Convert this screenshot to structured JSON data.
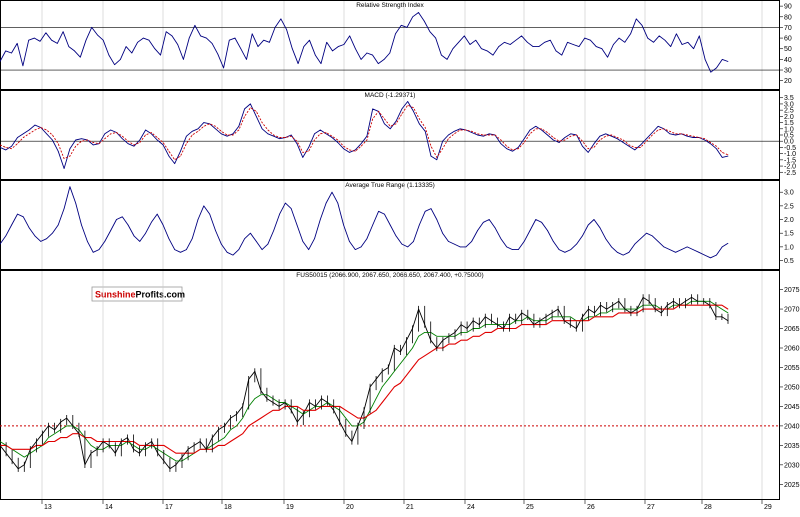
{
  "logo": {
    "part1": "Sunshine",
    "part2": "Profits.com"
  },
  "colors": {
    "price": "#000000",
    "ma_fast": "#008000",
    "ma_slow": "#e00000",
    "indicator": "#000080",
    "signal": "#cc0000",
    "reference": "#cc0000",
    "grid": "#c8c8c8"
  },
  "chart_data": [
    {
      "type": "line",
      "title": "Relative Strength Index",
      "ylim": [
        15,
        92
      ],
      "yticks": [
        "90",
        "80",
        "70",
        "60",
        "50",
        "40",
        "30",
        "20"
      ],
      "ytick_values": [
        90,
        80,
        70,
        60,
        50,
        40,
        30,
        20
      ],
      "hlines": [
        70,
        30
      ],
      "series": [
        {
          "values": [
            38,
            48,
            46,
            55,
            34,
            58,
            60,
            57,
            65,
            58,
            55,
            66,
            52,
            48,
            42,
            58,
            70,
            63,
            58,
            44,
            35,
            40,
            52,
            46,
            56,
            60,
            58,
            50,
            44,
            66,
            62,
            54,
            40,
            60,
            72,
            62,
            60,
            55,
            45,
            32,
            58,
            60,
            50,
            40,
            64,
            52,
            58,
            56,
            70,
            78,
            68,
            50,
            36,
            52,
            58,
            44,
            36,
            56,
            48,
            52,
            54,
            62,
            50,
            40,
            46,
            44,
            36,
            40,
            46,
            64,
            72,
            70,
            80,
            84,
            76,
            66,
            60,
            44,
            40,
            50,
            56,
            62,
            54,
            58,
            50,
            48,
            44,
            52,
            56,
            54,
            58,
            62,
            56,
            52,
            52,
            56,
            58,
            48,
            44,
            56,
            54,
            52,
            60,
            58,
            52,
            50,
            42,
            54,
            60,
            56,
            64,
            78,
            72,
            60,
            56,
            62,
            58,
            52,
            64,
            54,
            56,
            50,
            62,
            40,
            28,
            32,
            40,
            38
          ]
        }
      ]
    },
    {
      "type": "line",
      "title": "MACD (-1.29371)",
      "ylim": [
        -2.8,
        3.8
      ],
      "yticks": [
        "3.5",
        "3.0",
        "2.5",
        "2.0",
        "1.5",
        "1.0",
        "0.5",
        "0.0",
        "-0.5",
        "-1.0",
        "-1.5",
        "-2.0",
        "-2.5"
      ],
      "ytick_values": [
        3.5,
        3.0,
        2.5,
        2.0,
        1.5,
        1.0,
        0.5,
        0.0,
        -0.5,
        -1.0,
        -1.5,
        -2.0,
        -2.5
      ],
      "hlines": [
        0
      ],
      "series": [
        {
          "values": [
            -0.5,
            -0.7,
            -0.4,
            0.3,
            0.6,
            0.9,
            1.3,
            1.1,
            0.6,
            0.1,
            -0.8,
            -2.2,
            -0.6,
            0.1,
            0.2,
            0.1,
            -0.3,
            -0.2,
            0.6,
            0.9,
            0.7,
            0.2,
            -0.2,
            -0.4,
            0.1,
            0.9,
            0.6,
            0.1,
            -0.3,
            -1.2,
            -1.8,
            -0.8,
            0.4,
            0.8,
            1.0,
            1.5,
            1.4,
            1.0,
            0.6,
            0.4,
            0.6,
            1.2,
            2.6,
            3.0,
            2.0,
            1.0,
            0.6,
            0.4,
            0.2,
            0.3,
            0.5,
            -0.2,
            -1.3,
            -0.5,
            0.6,
            0.9,
            0.6,
            0.3,
            -0.1,
            -0.6,
            -0.9,
            -0.7,
            -0.2,
            0.4,
            2.6,
            2.4,
            1.4,
            1.0,
            1.6,
            2.6,
            3.2,
            2.4,
            1.4,
            0.8,
            -1.2,
            -1.5,
            0.0,
            0.5,
            0.8,
            1.0,
            0.9,
            0.7,
            0.5,
            0.4,
            0.6,
            0.5,
            -0.2,
            -0.6,
            -0.8,
            -0.5,
            0.2,
            0.9,
            1.2,
            0.9,
            0.5,
            0.1,
            -0.1,
            0.3,
            0.6,
            0.5,
            -0.4,
            -0.9,
            -0.2,
            0.4,
            0.6,
            0.4,
            0.2,
            -0.1,
            -0.4,
            -0.7,
            -0.3,
            0.2,
            0.7,
            1.2,
            1.0,
            0.6,
            0.5,
            0.6,
            0.4,
            0.3,
            0.3,
            0.1,
            -0.2,
            -0.6,
            -1.3,
            -1.2
          ]
        },
        {
          "values": [
            -0.3,
            -0.5,
            -0.6,
            -0.2,
            0.3,
            0.6,
            0.9,
            1.1,
            0.9,
            0.5,
            -0.2,
            -1.4,
            -1.2,
            -0.4,
            0.0,
            0.1,
            -0.1,
            -0.2,
            0.2,
            0.6,
            0.7,
            0.4,
            0.0,
            -0.3,
            -0.1,
            0.5,
            0.7,
            0.3,
            -0.1,
            -0.8,
            -1.5,
            -1.2,
            -0.2,
            0.5,
            0.8,
            1.2,
            1.4,
            1.2,
            0.8,
            0.5,
            0.5,
            0.9,
            2.0,
            2.7,
            2.4,
            1.5,
            0.9,
            0.5,
            0.3,
            0.3,
            0.4,
            0.0,
            -0.9,
            -0.8,
            0.1,
            0.6,
            0.7,
            0.4,
            0.1,
            -0.4,
            -0.7,
            -0.8,
            -0.4,
            0.1,
            1.8,
            2.4,
            1.8,
            1.2,
            1.4,
            2.2,
            2.9,
            2.7,
            1.8,
            1.1,
            -0.4,
            -1.3,
            -0.6,
            0.2,
            0.6,
            0.9,
            0.9,
            0.8,
            0.6,
            0.5,
            0.5,
            0.5,
            0.1,
            -0.4,
            -0.7,
            -0.6,
            -0.1,
            0.6,
            1.0,
            1.0,
            0.7,
            0.3,
            0.0,
            0.1,
            0.4,
            0.5,
            0.0,
            -0.6,
            -0.5,
            0.1,
            0.4,
            0.5,
            0.3,
            0.1,
            -0.3,
            -0.5,
            -0.5,
            0.0,
            0.5,
            0.9,
            1.0,
            0.8,
            0.6,
            0.6,
            0.5,
            0.4,
            0.3,
            0.2,
            -0.1,
            -0.4,
            -0.9,
            -1.1
          ]
        }
      ]
    },
    {
      "type": "line",
      "title": "Average True Range (1.13335)",
      "ylim": [
        0.3,
        3.3
      ],
      "yticks": [
        "3.0",
        "2.5",
        "2.0",
        "1.5",
        "1.0",
        "0.5"
      ],
      "ytick_values": [
        3.0,
        2.5,
        2.0,
        1.5,
        1.0,
        0.5
      ],
      "series": [
        {
          "values": [
            1.1,
            1.4,
            1.8,
            2.2,
            2.1,
            1.7,
            1.4,
            1.2,
            1.3,
            1.5,
            1.8,
            2.4,
            3.2,
            2.6,
            1.8,
            1.2,
            0.8,
            0.9,
            1.2,
            1.6,
            2.0,
            2.1,
            1.8,
            1.4,
            1.2,
            1.5,
            1.9,
            2.2,
            1.8,
            1.3,
            0.9,
            0.8,
            0.9,
            1.3,
            2.0,
            2.5,
            2.2,
            1.6,
            1.1,
            0.8,
            0.7,
            0.9,
            1.3,
            1.5,
            1.2,
            0.9,
            1.1,
            1.6,
            2.2,
            2.6,
            2.4,
            1.8,
            1.2,
            0.9,
            1.3,
            2.0,
            2.6,
            3.0,
            2.6,
            1.8,
            1.2,
            0.9,
            1.0,
            1.3,
            1.8,
            2.3,
            2.2,
            1.8,
            1.4,
            1.1,
            1.0,
            1.2,
            1.8,
            2.3,
            2.4,
            2.0,
            1.5,
            1.2,
            1.1,
            1.0,
            1.0,
            1.2,
            1.6,
            1.9,
            2.0,
            1.7,
            1.3,
            1.0,
            0.9,
            0.9,
            1.2,
            1.6,
            2.0,
            1.9,
            1.6,
            1.2,
            0.9,
            0.8,
            0.9,
            1.1,
            1.4,
            1.8,
            2.0,
            1.7,
            1.3,
            1.0,
            0.8,
            0.7,
            0.8,
            1.1,
            1.3,
            1.5,
            1.4,
            1.2,
            1.0,
            0.9,
            0.8,
            0.9,
            1.0,
            0.9,
            0.8,
            0.7,
            0.6,
            0.7,
            1.0,
            1.13
          ]
        }
      ]
    },
    {
      "type": "line",
      "title": "FUS50015 (2066.900, 2067.650, 2066.650, 2067.400, +0.75000)",
      "ylim": [
        2022,
        2079
      ],
      "yticks": [
        "2075",
        "2070",
        "2065",
        "2060",
        "2055",
        "2050",
        "2045",
        "2040",
        "2035",
        "2030",
        "2025"
      ],
      "ytick_values": [
        2075,
        2070,
        2065,
        2060,
        2055,
        2050,
        2045,
        2040,
        2035,
        2030,
        2025
      ],
      "x_tick_labels": [
        "13",
        "14",
        "17",
        "18",
        "19",
        "20",
        "21",
        "24",
        "25",
        "26",
        "27",
        "28",
        "29"
      ],
      "reference_line": 2040,
      "series": [
        {
          "values": [
            2035,
            2033,
            2031,
            2029,
            2030,
            2034,
            2036,
            2038,
            2040,
            2039,
            2041,
            2042,
            2040,
            2038,
            2030,
            2033,
            2034,
            2036,
            2035,
            2033,
            2036,
            2037,
            2034,
            2033,
            2035,
            2036,
            2033,
            2031,
            2029,
            2030,
            2032,
            2034,
            2035,
            2036,
            2034,
            2037,
            2039,
            2040,
            2042,
            2043,
            2045,
            2052,
            2054,
            2049,
            2047,
            2046,
            2045,
            2046,
            2044,
            2041,
            2043,
            2046,
            2045,
            2047,
            2046,
            2044,
            2041,
            2038,
            2036,
            2040,
            2044,
            2050,
            2052,
            2054,
            2055,
            2060,
            2059,
            2062,
            2065,
            2070,
            2066,
            2062,
            2060,
            2062,
            2063,
            2064,
            2066,
            2065,
            2067,
            2066,
            2068,
            2067,
            2066,
            2065,
            2068,
            2067,
            2069,
            2068,
            2066,
            2067,
            2068,
            2069,
            2070,
            2067,
            2066,
            2065,
            2068,
            2070,
            2069,
            2071,
            2070,
            2071,
            2072,
            2070,
            2069,
            2070,
            2073,
            2072,
            2070,
            2069,
            2071,
            2072,
            2071,
            2072,
            2073,
            2072,
            2072,
            2071,
            2068,
            2068,
            2067
          ]
        },
        {
          "values": [
            2036,
            2035,
            2034,
            2033,
            2032,
            2033,
            2034,
            2035,
            2037,
            2038,
            2039,
            2040,
            2040,
            2039,
            2037,
            2035,
            2034,
            2034,
            2035,
            2035,
            2035,
            2036,
            2035,
            2034,
            2034,
            2035,
            2034,
            2033,
            2032,
            2031,
            2031,
            2032,
            2033,
            2034,
            2034,
            2035,
            2036,
            2037,
            2039,
            2040,
            2042,
            2045,
            2047,
            2048,
            2048,
            2047,
            2046,
            2046,
            2045,
            2044,
            2043,
            2044,
            2045,
            2045,
            2046,
            2045,
            2044,
            2042,
            2040,
            2040,
            2041,
            2044,
            2047,
            2050,
            2052,
            2054,
            2056,
            2058,
            2060,
            2063,
            2064,
            2064,
            2063,
            2063,
            2063,
            2063,
            2064,
            2064,
            2065,
            2065,
            2066,
            2066,
            2066,
            2066,
            2066,
            2067,
            2067,
            2068,
            2067,
            2067,
            2067,
            2068,
            2068,
            2068,
            2068,
            2067,
            2067,
            2068,
            2068,
            2069,
            2069,
            2070,
            2070,
            2070,
            2070,
            2070,
            2071,
            2071,
            2071,
            2070,
            2070,
            2071,
            2071,
            2071,
            2072,
            2072,
            2072,
            2072,
            2071,
            2070,
            2069
          ]
        },
        {
          "values": [
            2035,
            2035,
            2034,
            2034,
            2034,
            2034,
            2035,
            2035,
            2036,
            2036,
            2037,
            2037,
            2038,
            2038,
            2037,
            2037,
            2036,
            2036,
            2036,
            2036,
            2036,
            2036,
            2036,
            2035,
            2035,
            2035,
            2035,
            2035,
            2034,
            2033,
            2033,
            2033,
            2033,
            2034,
            2034,
            2034,
            2035,
            2035,
            2036,
            2037,
            2038,
            2040,
            2041,
            2042,
            2043,
            2044,
            2044,
            2045,
            2045,
            2045,
            2044,
            2044,
            2044,
            2045,
            2045,
            2045,
            2045,
            2044,
            2043,
            2042,
            2042,
            2043,
            2044,
            2046,
            2048,
            2050,
            2051,
            2053,
            2055,
            2057,
            2058,
            2059,
            2060,
            2060,
            2061,
            2061,
            2062,
            2062,
            2063,
            2063,
            2064,
            2064,
            2065,
            2065,
            2065,
            2065,
            2066,
            2066,
            2066,
            2066,
            2066,
            2067,
            2067,
            2067,
            2067,
            2067,
            2067,
            2067,
            2068,
            2068,
            2068,
            2068,
            2069,
            2069,
            2069,
            2069,
            2070,
            2070,
            2070,
            2070,
            2070,
            2070,
            2071,
            2071,
            2071,
            2071,
            2071,
            2071,
            2071,
            2071,
            2070
          ]
        }
      ]
    }
  ]
}
